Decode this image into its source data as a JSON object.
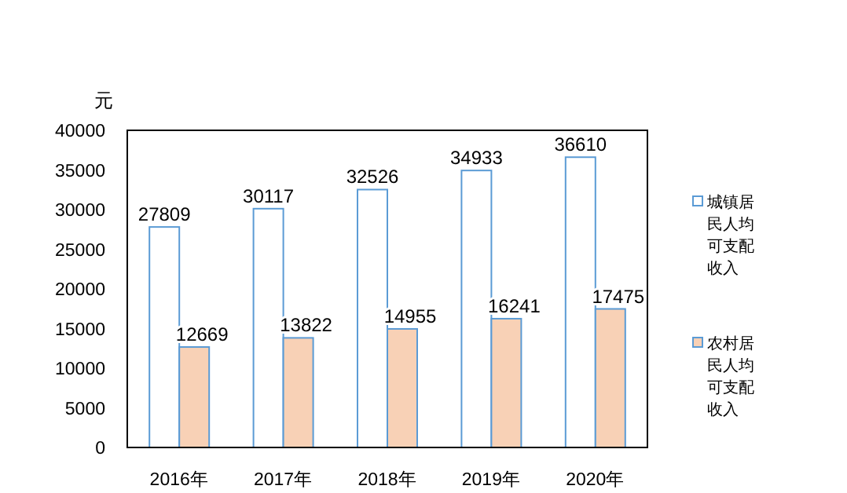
{
  "chart_data": {
    "type": "bar",
    "ylabel": "元",
    "categories": [
      "2016年",
      "2017年",
      "2018年",
      "2019年",
      "2020年"
    ],
    "series": [
      {
        "name": "城镇居民人均可支配收入",
        "color": "#ffffff",
        "values": [
          27809,
          30117,
          32526,
          34933,
          36610
        ]
      },
      {
        "name": "农村居民人均可支配收入",
        "color": "#f8d1b6",
        "values": [
          12669,
          13822,
          14955,
          16241,
          17475
        ]
      }
    ],
    "ylim": [
      0,
      40000
    ],
    "yticks": [
      0,
      5000,
      10000,
      15000,
      20000,
      25000,
      30000,
      35000,
      40000
    ],
    "data_labels": true,
    "legend": "right",
    "grid": false
  }
}
